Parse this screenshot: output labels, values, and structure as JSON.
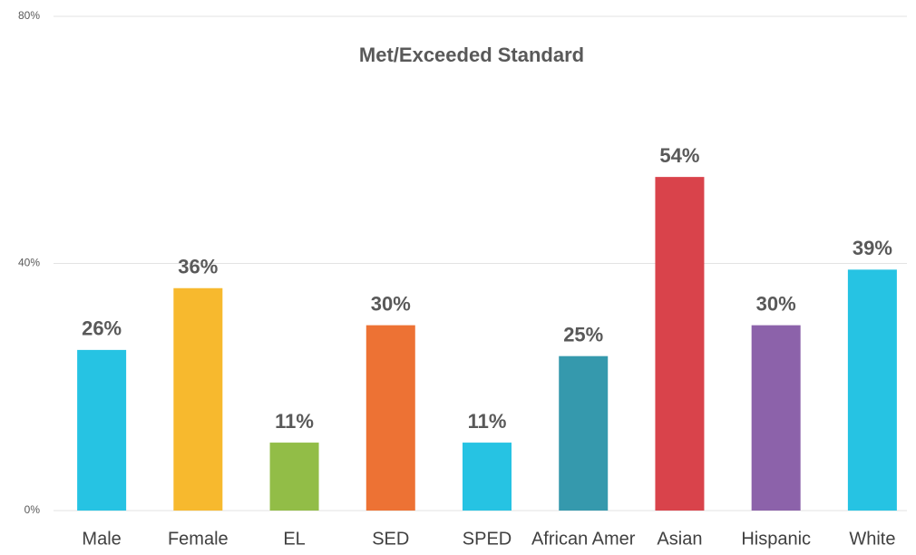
{
  "chart_data": {
    "type": "bar",
    "title": "Met/Exceeded Standard",
    "categories": [
      "Male",
      "Female",
      "EL",
      "SED",
      "SPED",
      "African Amer",
      "Asian",
      "Hispanic",
      "White"
    ],
    "values": [
      26,
      36,
      11,
      30,
      11,
      25,
      54,
      30,
      39
    ],
    "value_labels": [
      "26%",
      "36%",
      "11%",
      "30%",
      "11%",
      "25%",
      "54%",
      "30%",
      "39%"
    ],
    "colors": [
      "#26c3e3",
      "#f7b92e",
      "#92bd47",
      "#ed7234",
      "#26c3e3",
      "#3599ad",
      "#d9434b",
      "#8c62aa",
      "#26c3e3"
    ],
    "ylim": [
      0,
      80
    ],
    "yticks": [
      {
        "value": 0,
        "label": "0%"
      },
      {
        "value": 40,
        "label": "40%"
      },
      {
        "value": 80,
        "label": "80%"
      }
    ],
    "grid": true
  }
}
